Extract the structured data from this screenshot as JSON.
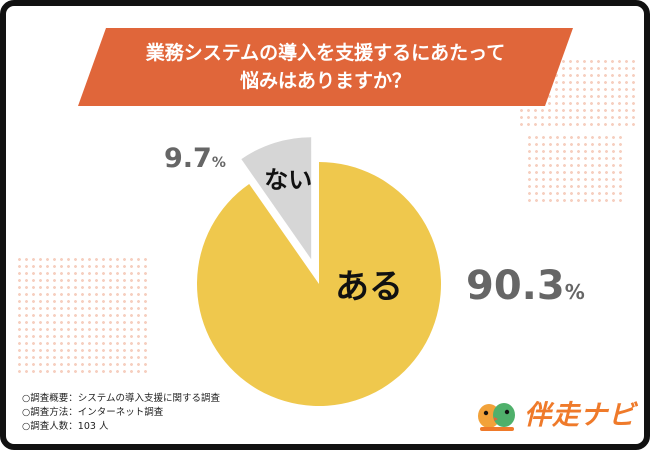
{
  "title": {
    "line1": "業務システムの導入を支援するにあたって",
    "line2": "悩みはありますか？"
  },
  "chart_data": {
    "type": "pie",
    "slices": [
      {
        "label": "ある",
        "value": 90.3,
        "value_text": "90.3",
        "unit": "%",
        "color": "#efc84d"
      },
      {
        "label": "ない",
        "value": 9.7,
        "value_text": "9.7",
        "unit": "%",
        "color": "#d6d6d6",
        "exploded": true
      }
    ]
  },
  "footnotes": [
    "○調査概要：システムの導入支援に関する調査",
    "○調査方法：インターネット調査",
    "○調査人数：103 人"
  ],
  "logo": {
    "text": "伴走ナビ",
    "icon": "bird-mascot-icon"
  },
  "colors": {
    "banner": "#e0663a",
    "accent_orange": "#ef7a2a",
    "label_gray": "#666666",
    "pie_main": "#efc84d",
    "pie_minor": "#d6d6d6"
  }
}
